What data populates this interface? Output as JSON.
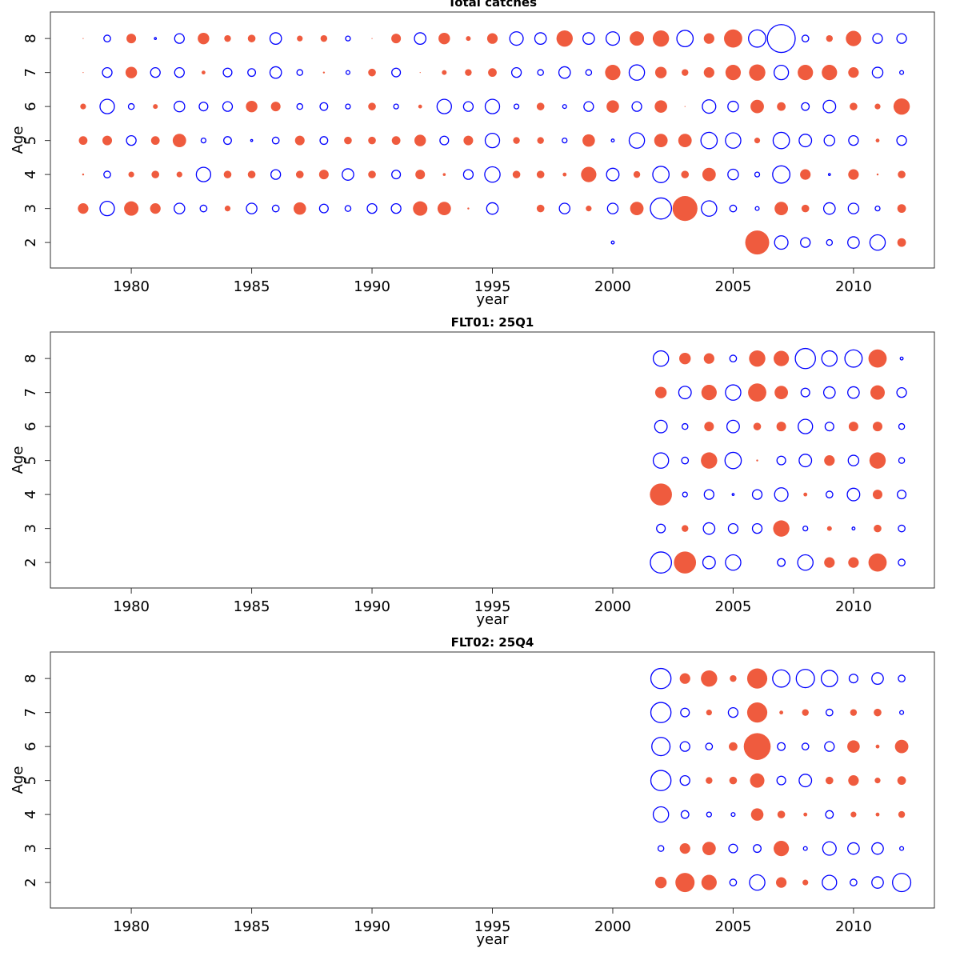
{
  "chart_data": [
    {
      "type": "bubble",
      "title": "Total catches",
      "xlabel": "year",
      "ylabel": "Age",
      "positive_color": "#ef5b3e",
      "negative_color": "#0000ff",
      "xlim": [
        1976.64,
        2013.36
      ],
      "xticks": [
        1980,
        1985,
        1990,
        1995,
        2000,
        2005,
        2010
      ],
      "ylim": [
        1.25,
        8.78
      ],
      "yticks": [
        2,
        3,
        4,
        5,
        6,
        7,
        8
      ],
      "x": [
        1978,
        1979,
        1980,
        1981,
        1982,
        1983,
        1984,
        1985,
        1986,
        1987,
        1988,
        1989,
        1990,
        1991,
        1992,
        1993,
        1994,
        1995,
        1996,
        1997,
        1998,
        1999,
        2000,
        2001,
        2002,
        2003,
        2004,
        2005,
        2006,
        2007,
        2008,
        2009,
        2010,
        2011,
        2012
      ],
      "y": [
        8,
        7,
        6,
        5,
        4,
        3,
        2
      ],
      "values": [
        [
          0.1,
          -0.7,
          1.0,
          -0.2,
          -1.0,
          1.2,
          0.7,
          0.8,
          -1.2,
          0.6,
          0.7,
          -0.5,
          0.1,
          1.0,
          -1.2,
          1.2,
          0.5,
          1.1,
          -1.4,
          -1.2,
          1.7,
          -1.2,
          -1.4,
          1.5,
          1.7,
          -1.7,
          1.1,
          1.9,
          -1.8,
          -2.9,
          -0.7,
          0.7,
          1.6,
          -1.0,
          -1.0
        ],
        [
          0.1,
          -1.0,
          1.2,
          -1.0,
          -1.0,
          0.4,
          -0.9,
          -0.8,
          -1.2,
          -0.6,
          0.2,
          -0.4,
          0.8,
          -0.9,
          0.1,
          0.5,
          0.7,
          0.9,
          -1.0,
          -0.6,
          -1.2,
          -0.6,
          1.6,
          -1.6,
          1.2,
          0.7,
          1.1,
          1.6,
          1.7,
          -1.5,
          1.6,
          1.6,
          1.1,
          -1.1,
          -0.4
        ],
        [
          0.6,
          -1.5,
          -0.6,
          0.5,
          -1.1,
          -0.9,
          -1.0,
          1.2,
          1.0,
          -0.6,
          -0.8,
          -0.5,
          0.8,
          -0.5,
          0.4,
          -1.5,
          -1.0,
          -1.5,
          -0.5,
          0.8,
          -0.4,
          -1.0,
          1.3,
          -1.0,
          1.3,
          0.1,
          -1.4,
          -1.1,
          1.4,
          0.9,
          -0.8,
          -1.3,
          0.8,
          0.6,
          1.7
        ],
        [
          0.9,
          1.0,
          -1.0,
          0.9,
          1.4,
          -0.5,
          -0.8,
          -0.2,
          -0.7,
          1.0,
          -0.8,
          0.8,
          0.8,
          0.9,
          1.2,
          -0.9,
          1.0,
          -1.5,
          0.7,
          0.7,
          -0.5,
          1.3,
          -0.3,
          -1.6,
          1.4,
          1.4,
          -1.7,
          -1.6,
          0.6,
          -1.7,
          -1.3,
          -1.1,
          -1.0,
          0.4,
          -1.0
        ],
        [
          0.2,
          -0.7,
          0.6,
          0.8,
          0.6,
          -1.5,
          0.8,
          0.8,
          -1.0,
          0.8,
          1.0,
          -1.2,
          0.8,
          -0.9,
          1.0,
          0.3,
          -1.0,
          -1.6,
          0.8,
          0.8,
          0.4,
          1.6,
          -1.3,
          0.7,
          -1.7,
          0.8,
          1.4,
          -1.1,
          -0.5,
          -1.8,
          1.1,
          -0.2,
          1.1,
          0.2,
          0.8
        ],
        [
          1.1,
          -1.5,
          1.5,
          1.1,
          -1.1,
          -0.7,
          0.6,
          -1.1,
          -0.7,
          1.3,
          -0.9,
          -0.6,
          -1.0,
          -1.0,
          1.5,
          1.4,
          0.2,
          -1.2,
          null,
          0.8,
          -1.1,
          0.6,
          -1.1,
          1.4,
          -2.2,
          2.6,
          -1.6,
          -0.7,
          -0.4,
          1.4,
          0.8,
          -1.2,
          -1.1,
          -0.5,
          0.9
        ],
        [
          null,
          null,
          null,
          null,
          null,
          null,
          null,
          null,
          null,
          null,
          null,
          null,
          null,
          null,
          null,
          null,
          null,
          null,
          null,
          null,
          null,
          null,
          -0.3,
          null,
          null,
          null,
          null,
          null,
          2.5,
          -1.4,
          -1.0,
          -0.6,
          -1.2,
          -1.6,
          0.9
        ]
      ]
    },
    {
      "type": "bubble",
      "title": "FLT01: 25Q1",
      "xlabel": "year",
      "ylabel": "Age",
      "positive_color": "#ef5b3e",
      "negative_color": "#0000ff",
      "xlim": [
        1976.64,
        2013.36
      ],
      "xticks": [
        1980,
        1985,
        1990,
        1995,
        2000,
        2005,
        2010
      ],
      "ylim": [
        1.25,
        8.78
      ],
      "yticks": [
        2,
        3,
        4,
        5,
        6,
        7,
        8
      ],
      "x": [
        2002,
        2003,
        2004,
        2005,
        2006,
        2007,
        2008,
        2009,
        2010,
        2011,
        2012
      ],
      "y": [
        8,
        7,
        6,
        5,
        4,
        3,
        2
      ],
      "values": [
        [
          -1.6,
          1.2,
          1.1,
          -0.7,
          1.7,
          1.6,
          -2.1,
          -1.6,
          -1.8,
          1.9,
          -0.3
        ],
        [
          1.2,
          -1.3,
          1.6,
          -1.6,
          1.9,
          1.4,
          -0.9,
          -1.2,
          -1.2,
          1.5,
          -1.0
        ],
        [
          -1.3,
          -0.6,
          1.0,
          -1.3,
          0.8,
          1.0,
          -1.5,
          -0.9,
          1.0,
          1.0,
          -0.6
        ],
        [
          -1.6,
          -0.7,
          1.7,
          -1.7,
          0.2,
          -0.9,
          -1.3,
          1.1,
          -1.1,
          1.7,
          -0.6
        ],
        [
          2.3,
          -0.5,
          -1.0,
          -0.2,
          -1.0,
          -1.4,
          0.4,
          -0.7,
          -1.3,
          1.0,
          -0.9
        ],
        [
          -0.9,
          0.7,
          -1.2,
          -1.0,
          -1.0,
          1.7,
          -0.5,
          0.5,
          -0.3,
          0.8,
          -0.7
        ],
        [
          -2.2,
          2.3,
          -1.3,
          -1.6,
          null,
          -0.8,
          -1.6,
          1.1,
          1.1,
          1.9,
          -0.7
        ]
      ]
    },
    {
      "type": "bubble",
      "title": "FLT02: 25Q4",
      "xlabel": "year",
      "ylabel": "Age",
      "positive_color": "#ef5b3e",
      "negative_color": "#0000ff",
      "xlim": [
        1976.64,
        2013.36
      ],
      "xticks": [
        1980,
        1985,
        1990,
        1995,
        2000,
        2005,
        2010
      ],
      "ylim": [
        1.25,
        8.78
      ],
      "yticks": [
        2,
        3,
        4,
        5,
        6,
        7,
        8
      ],
      "x": [
        2002,
        2003,
        2004,
        2005,
        2006,
        2007,
        2008,
        2009,
        2010,
        2011,
        2012
      ],
      "y": [
        8,
        7,
        6,
        5,
        4,
        3,
        2
      ],
      "values": [
        [
          -2.1,
          1.1,
          1.7,
          0.7,
          2.1,
          -1.8,
          -1.9,
          -1.7,
          -0.9,
          -1.2,
          -0.7
        ],
        [
          -2.1,
          -0.9,
          0.6,
          -1.0,
          2.1,
          0.4,
          0.7,
          -0.7,
          0.7,
          0.8,
          -0.4
        ],
        [
          -1.9,
          -1.0,
          -0.7,
          0.9,
          2.8,
          -0.8,
          -0.7,
          -1.0,
          1.3,
          0.4,
          1.4
        ],
        [
          -2.1,
          -1.0,
          0.7,
          0.8,
          1.5,
          -0.9,
          -1.3,
          0.8,
          1.1,
          0.6,
          0.9
        ],
        [
          -1.6,
          -0.8,
          -0.5,
          -0.4,
          1.3,
          0.8,
          0.4,
          -0.8,
          0.6,
          0.4,
          0.7
        ],
        [
          -0.6,
          1.1,
          1.4,
          -0.9,
          -0.8,
          1.6,
          -0.4,
          -1.4,
          -1.2,
          -1.2,
          -0.4
        ],
        [
          1.2,
          2.0,
          1.6,
          -0.7,
          -1.6,
          1.1,
          0.6,
          -1.5,
          -0.7,
          -1.2,
          -1.9
        ]
      ]
    }
  ]
}
